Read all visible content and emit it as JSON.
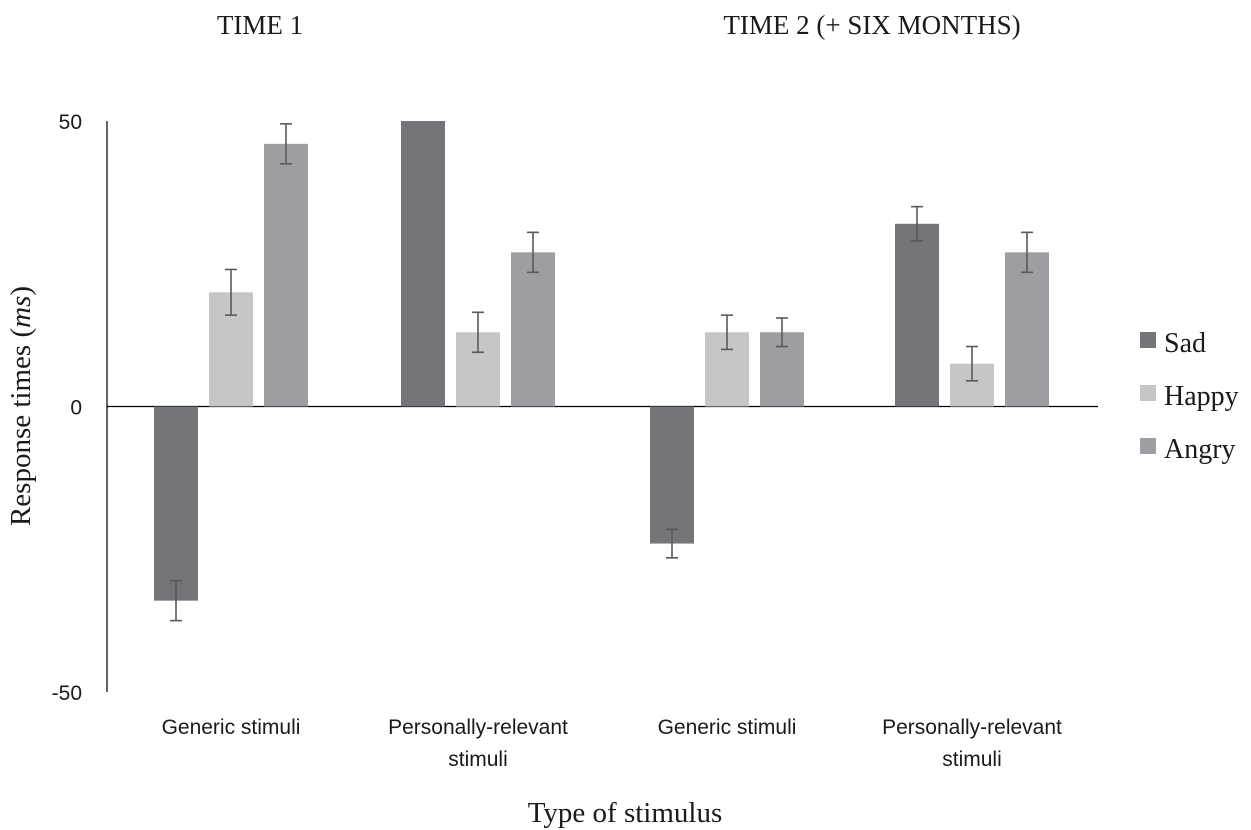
{
  "chart_data": {
    "type": "bar",
    "panel_titles": [
      "TIME 1",
      "TIME 2 (+ SIX MONTHS)"
    ],
    "categories": [
      [
        "Generic stimuli"
      ],
      [
        "Personally-relevant",
        "stimuli"
      ],
      [
        "Generic stimuli"
      ],
      [
        "Personally-relevant",
        "stimuli"
      ]
    ],
    "series": [
      {
        "name": "Sad",
        "color": "#747578",
        "values": [
          -34,
          50,
          -24,
          32
        ],
        "errors": [
          3.5,
          null,
          2.5,
          3
        ]
      },
      {
        "name": "Happy",
        "color": "#c5c6c8",
        "values": [
          20,
          13,
          13,
          7.5
        ],
        "errors": [
          4,
          3.5,
          3,
          3
        ]
      },
      {
        "name": "Angry",
        "color": "#9d9ea1",
        "values": [
          46,
          27,
          13,
          27
        ],
        "errors": [
          3.5,
          3.5,
          2.5,
          3.5
        ]
      }
    ],
    "ylabel_main": "Response times (",
    "ylabel_italic": "ms",
    "ylabel_end": ")",
    "xlabel": "Type of stimulus",
    "ylim": [
      -50,
      50
    ],
    "yticks": [
      50,
      0,
      -50
    ],
    "grid": false,
    "legend_position": "right"
  }
}
